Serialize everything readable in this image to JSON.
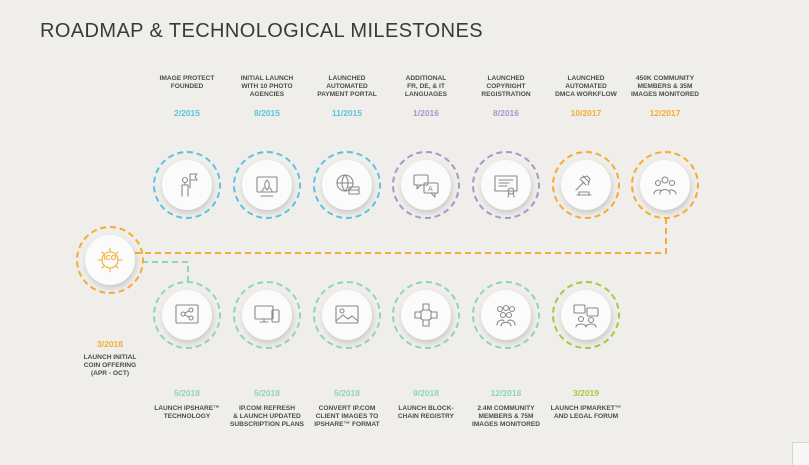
{
  "title": "ROADMAP & TECHNOLOGICAL MILESTONES",
  "colors": {
    "blue": "#5bc3e0",
    "purple": "#a697cf",
    "orange": "#f5ac32",
    "teal": "#8fd3c2",
    "green": "#a7c843"
  },
  "top_row": [
    {
      "label": "IMAGE PROTECT\nFOUNDED",
      "date": "2/2015",
      "color": "blue",
      "icon": "person-flag-icon"
    },
    {
      "label": "INITIAL LAUNCH\nWITH 10 PHOTO\nAGENCIES",
      "date": "8/2015",
      "color": "blue",
      "icon": "rocket-launch-icon"
    },
    {
      "label": "LAUNCHED\nAUTOMATED\nPAYMENT PORTAL",
      "date": "11/2015",
      "color": "blue",
      "icon": "globe-payment-icon"
    },
    {
      "label": "ADDITIONAL\nFR, DE, & IT\nLANGUAGES",
      "date": "1/2016",
      "color": "purple",
      "icon": "speech-bubbles-icon"
    },
    {
      "label": "LAUNCHED\nCOPYRIGHT\nREGISTRATION",
      "date": "8/2016",
      "color": "purple",
      "icon": "certificate-icon"
    },
    {
      "label": "LAUNCHED\nAUTOMATED\nDMCA WORKFLOW",
      "date": "10/2017",
      "color": "orange",
      "icon": "gavel-icon"
    },
    {
      "label": "450K COMMUNITY\nMEMBERS & 35M\nIMAGES MONITORED",
      "date": "12/2017",
      "color": "orange",
      "icon": "community-icon"
    }
  ],
  "ico": {
    "label": "LAUNCH INITIAL\nCOIN OFFERING\n(APR - OCT)",
    "date": "3/2018",
    "color": "orange",
    "icon": "ico-coin-icon",
    "coin_text": "ICO"
  },
  "bottom_row": [
    {
      "label": "LAUNCH IPSHARE™\nTECHNOLOGY",
      "date": "5/2018",
      "color": "teal",
      "icon": "share-icon"
    },
    {
      "label": "IP.COM REFRESH\n& LAUNCH UPDATED\nSUBSCRIPTION PLANS",
      "date": "5/2018",
      "color": "teal",
      "icon": "devices-icon"
    },
    {
      "label": "CONVERT IP.COM\nCLIENT IMAGES TO\nIPSHARE™ FORMAT",
      "date": "5/2018",
      "color": "teal",
      "icon": "image-icon"
    },
    {
      "label": "LAUNCH BLOCK-\nCHAIN REGISTRY",
      "date": "9/2018",
      "color": "teal",
      "icon": "blockchain-icon"
    },
    {
      "label": "2.4M COMMUNITY\nMEMBERS & 75M\nIMAGES MONITORED",
      "date": "12/2018",
      "color": "teal",
      "icon": "crowd-icon"
    },
    {
      "label": "LAUNCH IPMARKET™\nAND LEGAL FORUM",
      "date": "3/2019",
      "color": "green",
      "icon": "forum-icon"
    }
  ]
}
